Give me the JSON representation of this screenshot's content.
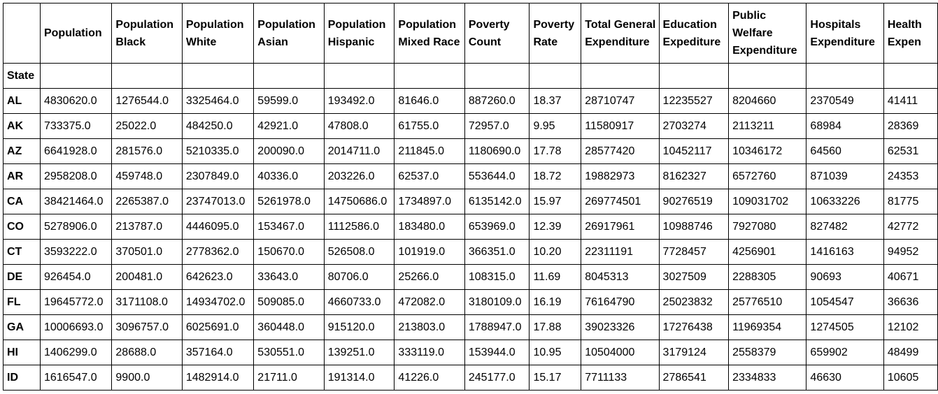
{
  "table": {
    "index_label": "State",
    "columns": [
      "Population",
      "Population Black",
      "Population White",
      "Population Asian",
      "Population Hispanic",
      "Population Mixed Race",
      "Poverty Count",
      "Poverty Rate",
      "Total General Expenditure",
      "Education Expediture",
      "Public Welfare Expenditure",
      "Hospitals Expenditure",
      "Health Expen"
    ],
    "rows": [
      {
        "state": "AL",
        "values": [
          "4830620.0",
          "1276544.0",
          "3325464.0",
          "59599.0",
          "193492.0",
          "81646.0",
          "887260.0",
          "18.37",
          "28710747",
          "12235527",
          "8204660",
          "2370549",
          "41411"
        ]
      },
      {
        "state": "AK",
        "values": [
          "733375.0",
          "25022.0",
          "484250.0",
          "42921.0",
          "47808.0",
          "61755.0",
          "72957.0",
          "9.95",
          "11580917",
          "2703274",
          "2113211",
          "68984",
          "28369"
        ]
      },
      {
        "state": "AZ",
        "values": [
          "6641928.0",
          "281576.0",
          "5210335.0",
          "200090.0",
          "2014711.0",
          "211845.0",
          "1180690.0",
          "17.78",
          "28577420",
          "10452117",
          "10346172",
          "64560",
          "62531"
        ]
      },
      {
        "state": "AR",
        "values": [
          "2958208.0",
          "459748.0",
          "2307849.0",
          "40336.0",
          "203226.0",
          "62537.0",
          "553644.0",
          "18.72",
          "19882973",
          "8162327",
          "6572760",
          "871039",
          "24353"
        ]
      },
      {
        "state": "CA",
        "values": [
          "38421464.0",
          "2265387.0",
          "23747013.0",
          "5261978.0",
          "14750686.0",
          "1734897.0",
          "6135142.0",
          "15.97",
          "269774501",
          "90276519",
          "109031702",
          "10633226",
          "81775"
        ]
      },
      {
        "state": "CO",
        "values": [
          "5278906.0",
          "213787.0",
          "4446095.0",
          "153467.0",
          "1112586.0",
          "183480.0",
          "653969.0",
          "12.39",
          "26917961",
          "10988746",
          "7927080",
          "827482",
          "42772"
        ]
      },
      {
        "state": "CT",
        "values": [
          "3593222.0",
          "370501.0",
          "2778362.0",
          "150670.0",
          "526508.0",
          "101919.0",
          "366351.0",
          "10.20",
          "22311191",
          "7728457",
          "4256901",
          "1416163",
          "94952"
        ]
      },
      {
        "state": "DE",
        "values": [
          "926454.0",
          "200481.0",
          "642623.0",
          "33643.0",
          "80706.0",
          "25266.0",
          "108315.0",
          "11.69",
          "8045313",
          "3027509",
          "2288305",
          "90693",
          "40671"
        ]
      },
      {
        "state": "FL",
        "values": [
          "19645772.0",
          "3171108.0",
          "14934702.0",
          "509085.0",
          "4660733.0",
          "472082.0",
          "3180109.0",
          "16.19",
          "76164790",
          "25023832",
          "25776510",
          "1054547",
          "36636"
        ]
      },
      {
        "state": "GA",
        "values": [
          "10006693.0",
          "3096757.0",
          "6025691.0",
          "360448.0",
          "915120.0",
          "213803.0",
          "1788947.0",
          "17.88",
          "39023326",
          "17276438",
          "11969354",
          "1274505",
          "12102"
        ]
      },
      {
        "state": "HI",
        "values": [
          "1406299.0",
          "28688.0",
          "357164.0",
          "530551.0",
          "139251.0",
          "333119.0",
          "153944.0",
          "10.95",
          "10504000",
          "3179124",
          "2558379",
          "659902",
          "48499"
        ]
      },
      {
        "state": "ID",
        "values": [
          "1616547.0",
          "9900.0",
          "1482914.0",
          "21711.0",
          "191314.0",
          "41226.0",
          "245177.0",
          "15.17",
          "7711133",
          "2786541",
          "2334833",
          "46630",
          "10605"
        ]
      }
    ]
  }
}
